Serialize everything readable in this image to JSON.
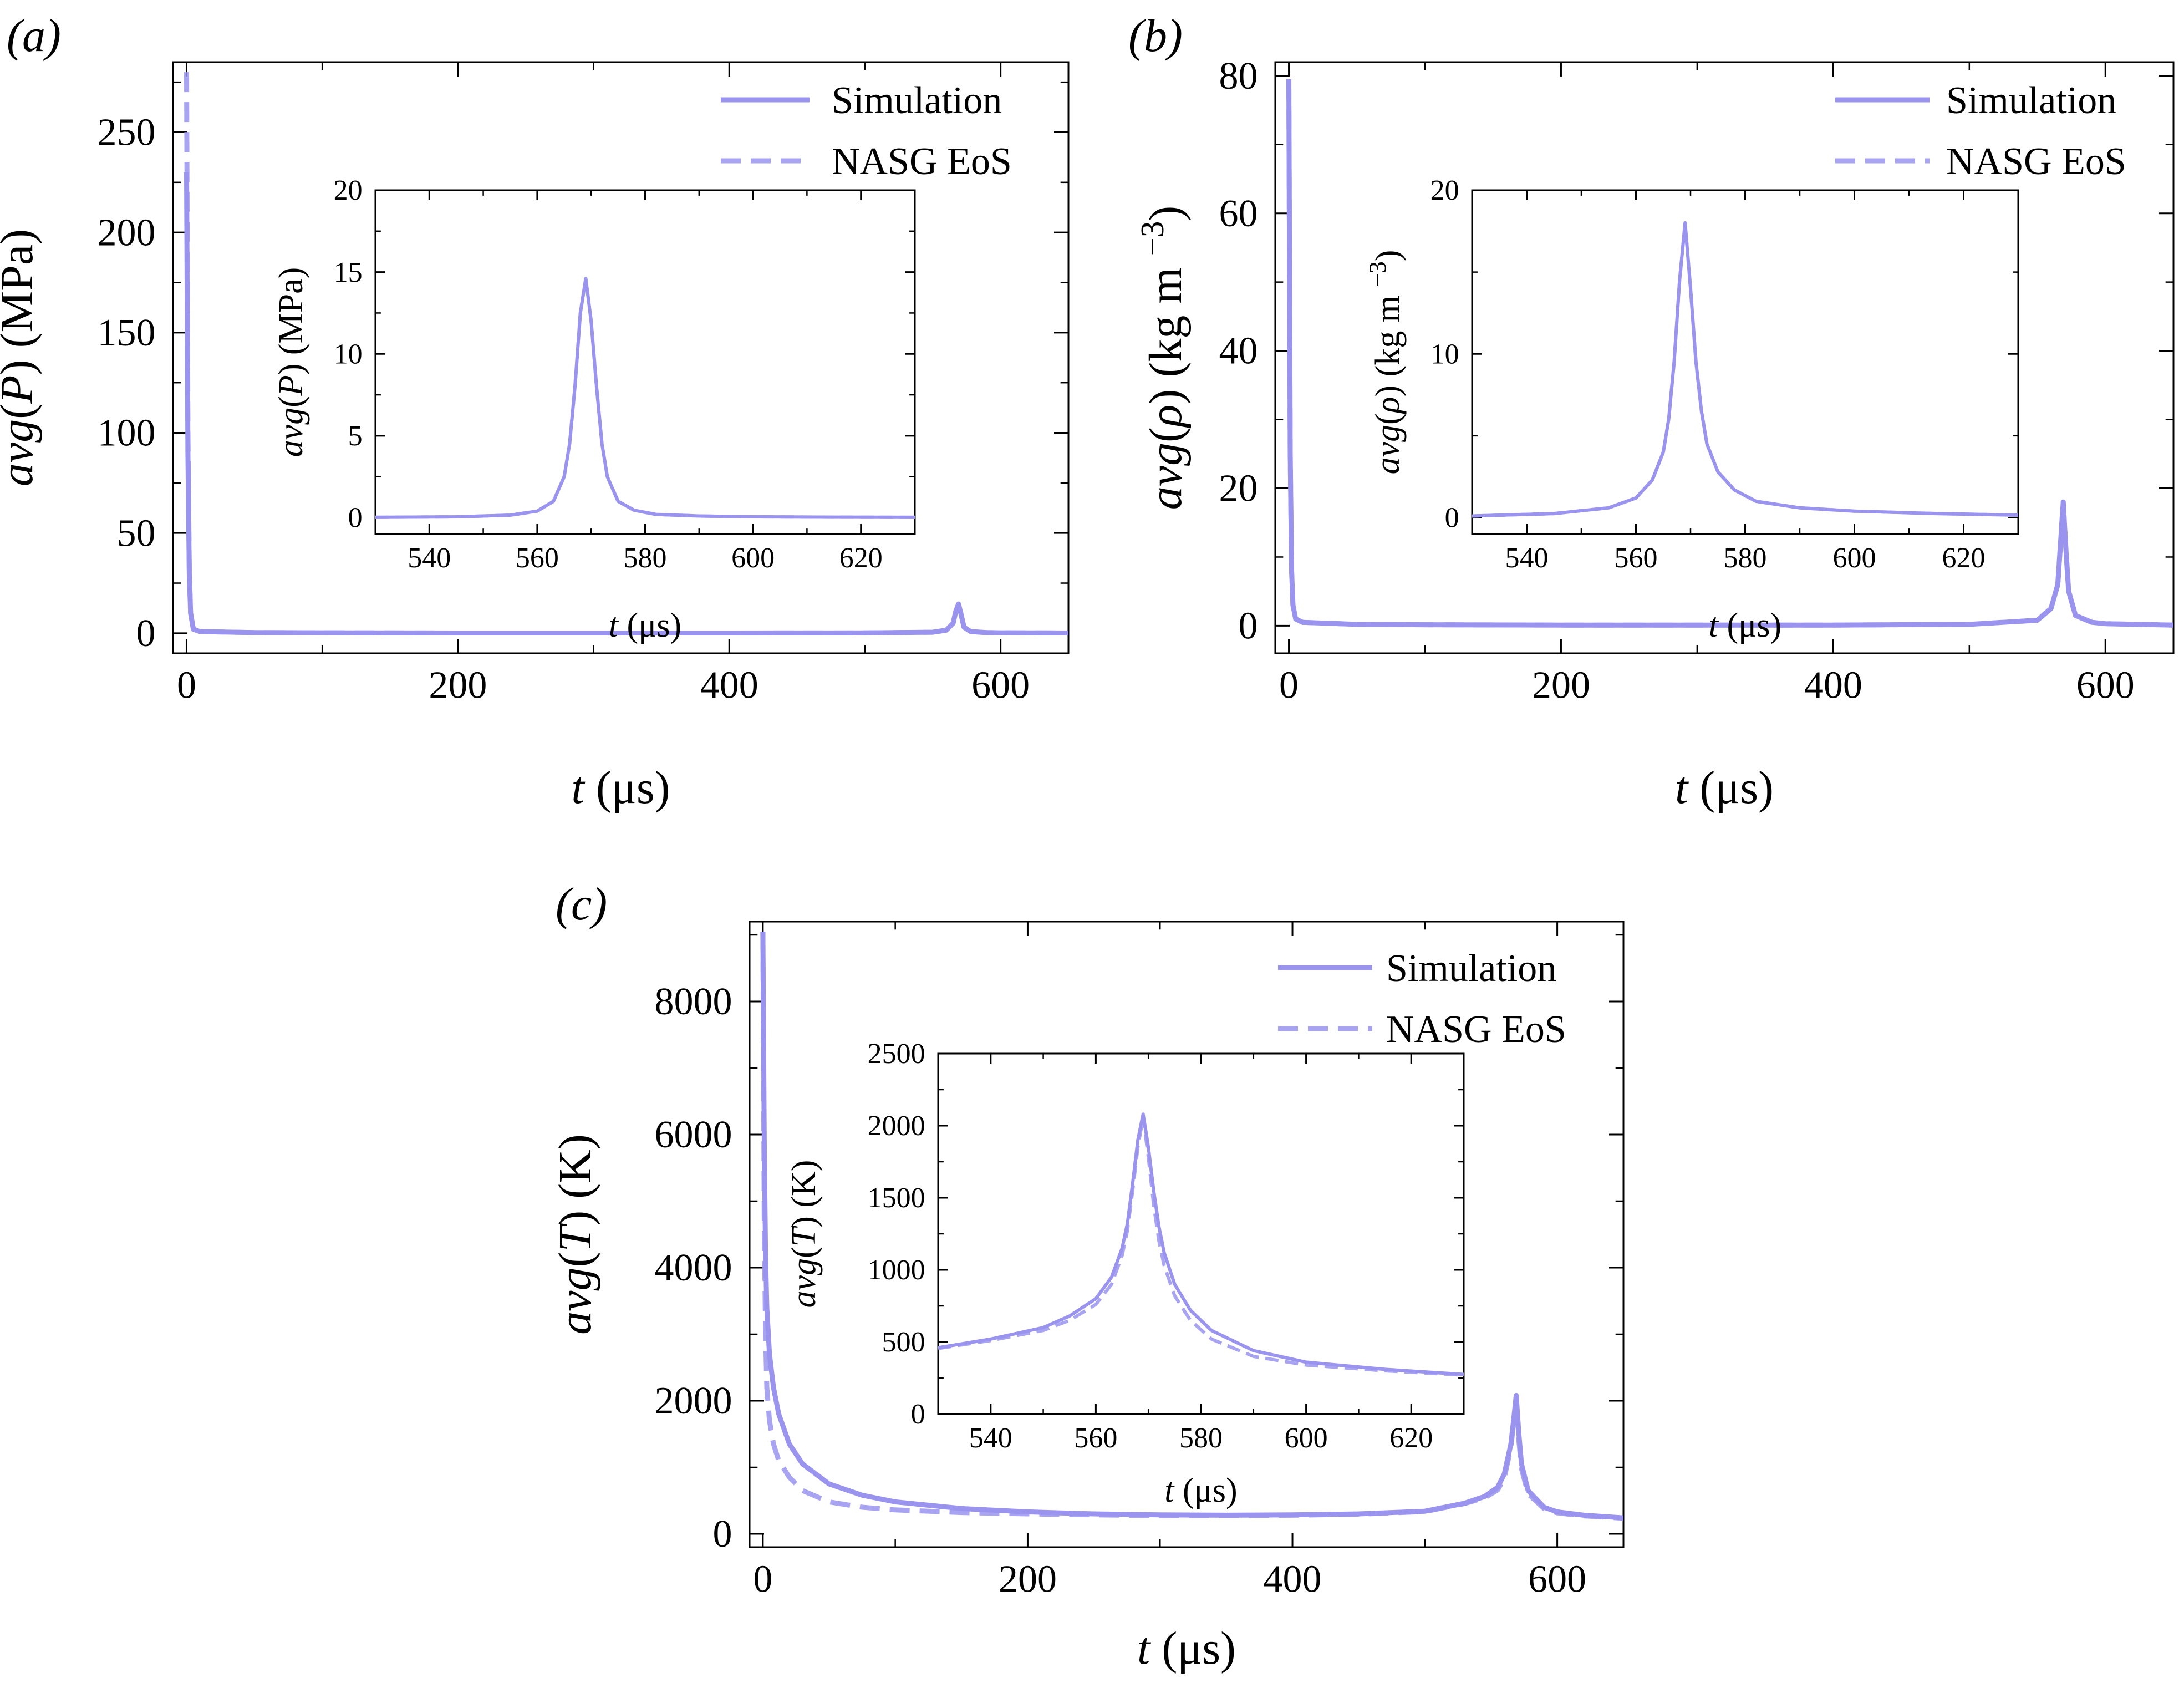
{
  "figure": {
    "series_color": "#9a94ee",
    "axis_color": "#000000",
    "background": "#ffffff"
  },
  "chart_data": [
    {
      "id": "a",
      "panel_label": "(a)",
      "type": "line",
      "ylabel": "avg(P) (MPa)",
      "xlabel": "t (μs)",
      "xlim": [
        -10,
        650
      ],
      "ylim": [
        -10,
        285
      ],
      "xticks": [
        0,
        200,
        400,
        600
      ],
      "yticks": [
        0,
        50,
        100,
        150,
        200,
        250
      ],
      "legend": {
        "placement": "top-right",
        "entries": [
          "Simulation",
          "NASG EoS"
        ]
      },
      "series": [
        {
          "name": "Simulation",
          "style": "solid",
          "x": [
            0,
            1,
            2,
            3,
            5,
            10,
            50,
            100,
            200,
            300,
            400,
            500,
            550,
            560,
            565,
            567,
            569,
            571,
            573,
            578,
            590,
            600,
            650
          ],
          "y": [
            230,
            90,
            30,
            10,
            2,
            0.8,
            0.3,
            0.2,
            0.1,
            0.1,
            0.1,
            0.15,
            0.5,
            1.5,
            5,
            11,
            14.6,
            9,
            3,
            0.8,
            0.3,
            0.2,
            0.1
          ]
        },
        {
          "name": "NASG EoS",
          "style": "dashed",
          "x": [
            0,
            1,
            2,
            3,
            5,
            10,
            50,
            100,
            200,
            300,
            400,
            500,
            550,
            560,
            565,
            567,
            569,
            571,
            573,
            578,
            590,
            600,
            650
          ],
          "y": [
            280,
            100,
            32,
            10,
            2,
            0.8,
            0.3,
            0.2,
            0.1,
            0.1,
            0.1,
            0.15,
            0.5,
            1.5,
            5,
            11,
            14.6,
            9,
            3,
            0.8,
            0.3,
            0.2,
            0.1
          ]
        }
      ],
      "inset": {
        "ylabel": "avg(P) (MPa)",
        "xlabel": "t (μs)",
        "xlim": [
          530,
          630
        ],
        "ylim": [
          -1,
          20
        ],
        "xticks": [
          540,
          560,
          580,
          600,
          620
        ],
        "yticks": [
          0,
          5,
          10,
          15,
          20
        ],
        "series": [
          {
            "name": "Simulation",
            "style": "solid",
            "x": [
              530,
              545,
              555,
              560,
              563,
              565,
              566,
              567,
              568,
              569,
              570,
              571,
              572,
              573,
              575,
              578,
              582,
              590,
              600,
              615,
              630
            ],
            "y": [
              0.02,
              0.05,
              0.15,
              0.4,
              1.0,
              2.5,
              4.5,
              8,
              12.5,
              14.6,
              12,
              8,
              4.5,
              2.5,
              1.0,
              0.45,
              0.2,
              0.1,
              0.05,
              0.03,
              0.02
            ]
          },
          {
            "name": "NASG EoS",
            "style": "dashed",
            "x": [
              530,
              545,
              555,
              560,
              563,
              565,
              566,
              567,
              568,
              569,
              570,
              571,
              572,
              573,
              575,
              578,
              582,
              590,
              600,
              615,
              630
            ],
            "y": [
              0.02,
              0.05,
              0.15,
              0.4,
              1.0,
              2.5,
              4.5,
              8,
              12.5,
              14.6,
              12,
              8,
              4.5,
              2.5,
              1.0,
              0.45,
              0.2,
              0.1,
              0.05,
              0.03,
              0.02
            ]
          }
        ]
      }
    },
    {
      "id": "b",
      "panel_label": "(b)",
      "type": "line",
      "ylabel": "avg(ρ) (kg m⁻³)",
      "xlabel": "t (μs)",
      "xlim": [
        -10,
        650
      ],
      "ylim": [
        -4,
        82
      ],
      "xticks": [
        0,
        200,
        400,
        600
      ],
      "yticks": [
        0,
        20,
        40,
        60,
        80
      ],
      "legend": {
        "placement": "top-right",
        "entries": [
          "Simulation",
          "NASG EoS"
        ]
      },
      "series": [
        {
          "name": "Simulation",
          "style": "solid",
          "x": [
            0,
            1,
            2,
            3,
            5,
            10,
            50,
            100,
            200,
            300,
            400,
            500,
            550,
            560,
            565,
            567,
            569,
            571,
            573,
            578,
            590,
            600,
            650
          ],
          "y": [
            79.5,
            25,
            8,
            3,
            1,
            0.5,
            0.2,
            0.15,
            0.1,
            0.1,
            0.1,
            0.2,
            0.8,
            2.5,
            6,
            12,
            18,
            11,
            5,
            1.5,
            0.5,
            0.3,
            0.1
          ]
        },
        {
          "name": "NASG EoS",
          "style": "dashed",
          "x": [
            0,
            1,
            2,
            3,
            5,
            10,
            50,
            100,
            200,
            300,
            400,
            500,
            550,
            560,
            565,
            567,
            569,
            571,
            573,
            578,
            590,
            600,
            650
          ],
          "y": [
            79.5,
            25,
            8,
            3,
            1,
            0.5,
            0.2,
            0.15,
            0.1,
            0.1,
            0.1,
            0.2,
            0.8,
            2.5,
            6,
            12,
            18,
            11,
            5,
            1.5,
            0.5,
            0.3,
            0.1
          ]
        }
      ],
      "inset": {
        "ylabel": "avg(ρ) (kg m⁻³)",
        "xlabel": "t (μs)",
        "xlim": [
          530,
          630
        ],
        "ylim": [
          -1,
          20
        ],
        "xticks": [
          540,
          560,
          580,
          600,
          620
        ],
        "yticks": [
          0,
          10,
          20
        ],
        "series": [
          {
            "name": "Simulation",
            "style": "solid",
            "x": [
              530,
              545,
              555,
              560,
              563,
              565,
              566,
              567,
              568,
              569,
              570,
              571,
              572,
              573,
              575,
              578,
              582,
              590,
              600,
              615,
              630
            ],
            "y": [
              0.1,
              0.25,
              0.6,
              1.2,
              2.3,
              4,
              6,
              9.5,
              14.5,
              18,
              14,
              9.5,
              6.5,
              4.5,
              2.8,
              1.7,
              1.0,
              0.6,
              0.4,
              0.25,
              0.15
            ]
          },
          {
            "name": "NASG EoS",
            "style": "dashed",
            "x": [
              530,
              545,
              555,
              560,
              563,
              565,
              566,
              567,
              568,
              569,
              570,
              571,
              572,
              573,
              575,
              578,
              582,
              590,
              600,
              615,
              630
            ],
            "y": [
              0.1,
              0.25,
              0.6,
              1.2,
              2.3,
              4,
              6,
              9.5,
              14.5,
              18,
              14,
              9.5,
              6.5,
              4.5,
              2.8,
              1.7,
              1.0,
              0.6,
              0.4,
              0.25,
              0.15
            ]
          }
        ]
      }
    },
    {
      "id": "c",
      "panel_label": "(c)",
      "type": "line",
      "ylabel": "avg(T) (K)",
      "xlabel": "t (μs)",
      "xlim": [
        -10,
        650
      ],
      "ylim": [
        -200,
        9200
      ],
      "xticks": [
        0,
        200,
        400,
        600
      ],
      "yticks": [
        0,
        2000,
        4000,
        6000,
        8000
      ],
      "legend": {
        "placement": "top-right",
        "entries": [
          "Simulation",
          "NASG EoS"
        ]
      },
      "series": [
        {
          "name": "Simulation",
          "style": "solid",
          "x": [
            0,
            1,
            2,
            3,
            5,
            8,
            12,
            20,
            30,
            50,
            75,
            100,
            150,
            200,
            250,
            300,
            350,
            400,
            450,
            500,
            530,
            545,
            555,
            560,
            565,
            567,
            569,
            571,
            573,
            578,
            590,
            600,
            620,
            650
          ],
          "y": [
            9050,
            6000,
            4200,
            3400,
            2700,
            2200,
            1800,
            1350,
            1050,
            750,
            580,
            480,
            380,
            330,
            300,
            285,
            280,
            285,
            300,
            340,
            460,
            560,
            700,
            900,
            1350,
            1700,
            2080,
            1500,
            1050,
            650,
            400,
            330,
            280,
            240
          ]
        },
        {
          "name": "NASG EoS",
          "style": "dashed",
          "x": [
            0,
            1,
            2,
            3,
            5,
            8,
            12,
            20,
            30,
            50,
            75,
            100,
            150,
            200,
            250,
            300,
            350,
            400,
            450,
            500,
            530,
            545,
            555,
            560,
            565,
            567,
            569,
            571,
            573,
            578,
            590,
            600,
            620,
            650
          ],
          "y": [
            9050,
            4800,
            3000,
            2200,
            1700,
            1350,
            1100,
            850,
            650,
            480,
            400,
            360,
            320,
            300,
            285,
            275,
            275,
            280,
            295,
            335,
            455,
            540,
            660,
            840,
            1300,
            1650,
            2060,
            1400,
            980,
            600,
            380,
            315,
            270,
            235
          ]
        }
      ],
      "inset": {
        "ylabel": "avg(T) (K)",
        "xlabel": "t (μs)",
        "xlim": [
          530,
          630
        ],
        "ylim": [
          0,
          2500
        ],
        "xticks": [
          540,
          560,
          580,
          600,
          620
        ],
        "yticks": [
          0,
          500,
          1000,
          1500,
          2000,
          2500
        ],
        "series": [
          {
            "name": "Simulation",
            "style": "solid",
            "x": [
              530,
              540,
              550,
              555,
              560,
              563,
              565,
              566,
              567,
              568,
              569,
              570,
              571,
              572,
              573,
              575,
              578,
              582,
              590,
              600,
              615,
              630
            ],
            "y": [
              460,
              520,
              600,
              680,
              800,
              950,
              1150,
              1320,
              1600,
              1900,
              2080,
              1850,
              1550,
              1300,
              1120,
              900,
              720,
              580,
              440,
              360,
              310,
              275
            ]
          },
          {
            "name": "NASG EoS",
            "style": "dashed",
            "x": [
              530,
              540,
              550,
              555,
              560,
              563,
              565,
              566,
              567,
              568,
              569,
              570,
              571,
              572,
              573,
              575,
              578,
              582,
              590,
              600,
              615,
              630
            ],
            "y": [
              455,
              510,
              580,
              650,
              760,
              900,
              1100,
              1270,
              1550,
              1850,
              2060,
              1780,
              1450,
              1200,
              1030,
              820,
              650,
              520,
              400,
              340,
              300,
              270
            ]
          }
        ]
      }
    }
  ]
}
